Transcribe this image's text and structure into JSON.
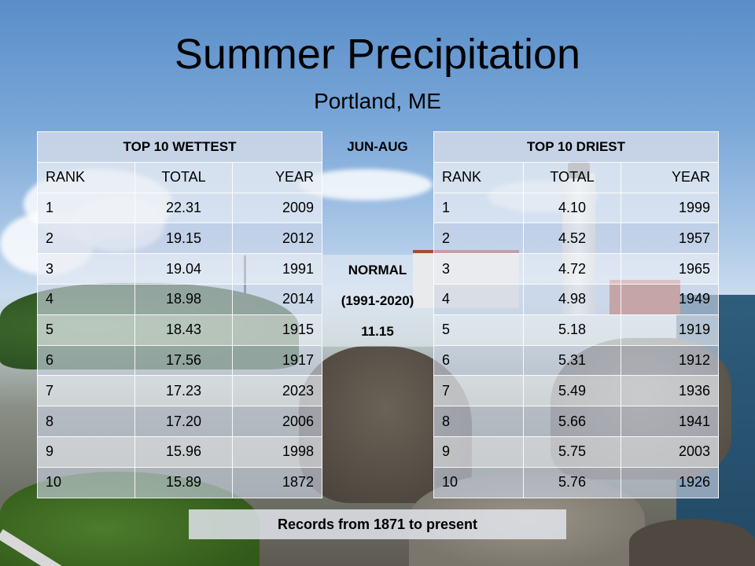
{
  "title": "Summer Precipitation",
  "subtitle": "Portland, ME",
  "season_label": "JUN-AUG",
  "normal": {
    "label": "NORMAL",
    "period": "(1991-2020)",
    "value": "11.15"
  },
  "wettest": {
    "header": "TOP 10 WETTEST",
    "columns": [
      "RANK",
      "TOTAL",
      "YEAR"
    ],
    "rows": [
      {
        "rank": "1",
        "total": "22.31",
        "year": "2009"
      },
      {
        "rank": "2",
        "total": "19.15",
        "year": "2012"
      },
      {
        "rank": "3",
        "total": "19.04",
        "year": "1991"
      },
      {
        "rank": "4",
        "total": "18.98",
        "year": "2014"
      },
      {
        "rank": "5",
        "total": "18.43",
        "year": "1915"
      },
      {
        "rank": "6",
        "total": "17.56",
        "year": "1917"
      },
      {
        "rank": "7",
        "total": "17.23",
        "year": "2023"
      },
      {
        "rank": "8",
        "total": "17.20",
        "year": "2006"
      },
      {
        "rank": "9",
        "total": "15.96",
        "year": "1998"
      },
      {
        "rank": "10",
        "total": "15.89",
        "year": "1872"
      }
    ]
  },
  "driest": {
    "header": "TOP 10 DRIEST",
    "columns": [
      "RANK",
      "TOTAL",
      "YEAR"
    ],
    "rows": [
      {
        "rank": "1",
        "total": "4.10",
        "year": "1999"
      },
      {
        "rank": "2",
        "total": "4.52",
        "year": "1957"
      },
      {
        "rank": "3",
        "total": "4.72",
        "year": "1965"
      },
      {
        "rank": "4",
        "total": "4.98",
        "year": "1949"
      },
      {
        "rank": "5",
        "total": "5.18",
        "year": "1919"
      },
      {
        "rank": "6",
        "total": "5.31",
        "year": "1912"
      },
      {
        "rank": "7",
        "total": "5.49",
        "year": "1936"
      },
      {
        "rank": "8",
        "total": "5.66",
        "year": "1941"
      },
      {
        "rank": "9",
        "total": "5.75",
        "year": "2003"
      },
      {
        "rank": "10",
        "total": "5.76",
        "year": "1926"
      }
    ]
  },
  "footer": "Records from 1871 to present"
}
